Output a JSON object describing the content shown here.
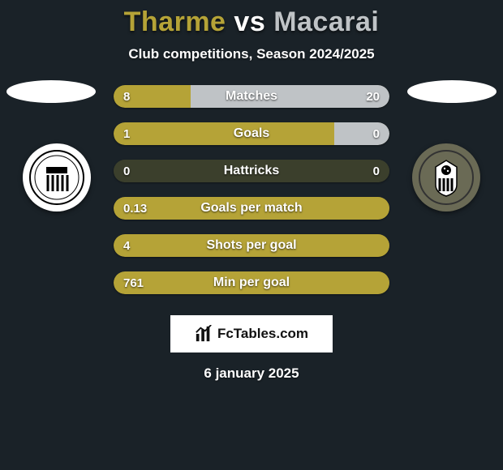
{
  "title": {
    "p1": "Tharme",
    "vs": "vs",
    "p2": "Macarai"
  },
  "title_colors": {
    "p1": "#b5a337",
    "vs": "#ffffff",
    "p2": "#bfc3c6"
  },
  "subtitle": "Club competitions, Season 2024/2025",
  "palette": {
    "left_bar": "#b5a337",
    "right_bar": "#bfc3c6",
    "row_bg": "#3b3f2c"
  },
  "bars": [
    {
      "label": "Matches",
      "left_val": "8",
      "right_val": "20",
      "left_pct": 28,
      "right_pct": 72
    },
    {
      "label": "Goals",
      "left_val": "1",
      "right_val": "0",
      "left_pct": 80,
      "right_pct": 20
    },
    {
      "label": "Hattricks",
      "left_val": "0",
      "right_val": "0",
      "left_pct": 50,
      "right_pct": 50,
      "neutral": true
    },
    {
      "label": "Goals per match",
      "left_val": "0.13",
      "right_val": "",
      "left_pct": 100,
      "right_pct": 0
    },
    {
      "label": "Shots per goal",
      "left_val": "4",
      "right_val": "",
      "left_pct": 100,
      "right_pct": 0
    },
    {
      "label": "Min per goal",
      "left_val": "761",
      "right_val": "",
      "left_pct": 100,
      "right_pct": 0
    }
  ],
  "brand": "FcTables.com",
  "date": "6 january 2025"
}
